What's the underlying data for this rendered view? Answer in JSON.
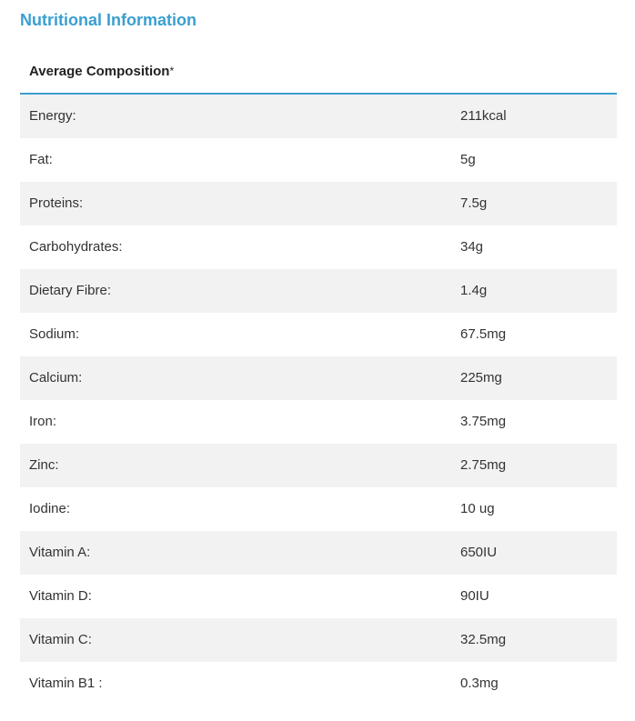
{
  "title": "Nutritional Information",
  "header": {
    "label": "Average Composition",
    "marker": "*"
  },
  "rows": [
    {
      "label": "Energy:",
      "value": "211kcal"
    },
    {
      "label": "Fat:",
      "value": "5g"
    },
    {
      "label": "Proteins:",
      "value": "7.5g"
    },
    {
      "label": "Carbohydrates:",
      "value": "34g"
    },
    {
      "label": "Dietary Fibre:",
      "value": "1.4g"
    },
    {
      "label": "Sodium:",
      "value": "67.5mg"
    },
    {
      "label": "Calcium:",
      "value": "225mg"
    },
    {
      "label": "Iron:",
      "value": "3.75mg"
    },
    {
      "label": "Zinc:",
      "value": "2.75mg"
    },
    {
      "label": "Iodine:",
      "value": "10 ug"
    },
    {
      "label": "Vitamin A:",
      "value": "650IU"
    },
    {
      "label": "Vitamin D:",
      "value": "90IU"
    },
    {
      "label": "Vitamin C:",
      "value": "32.5mg"
    },
    {
      "label": "Vitamin B1 :",
      "value": "0.3mg"
    }
  ],
  "colors": {
    "accent": "#3a9fd1",
    "row_alt": "#f2f2f2",
    "text": "#333333"
  }
}
